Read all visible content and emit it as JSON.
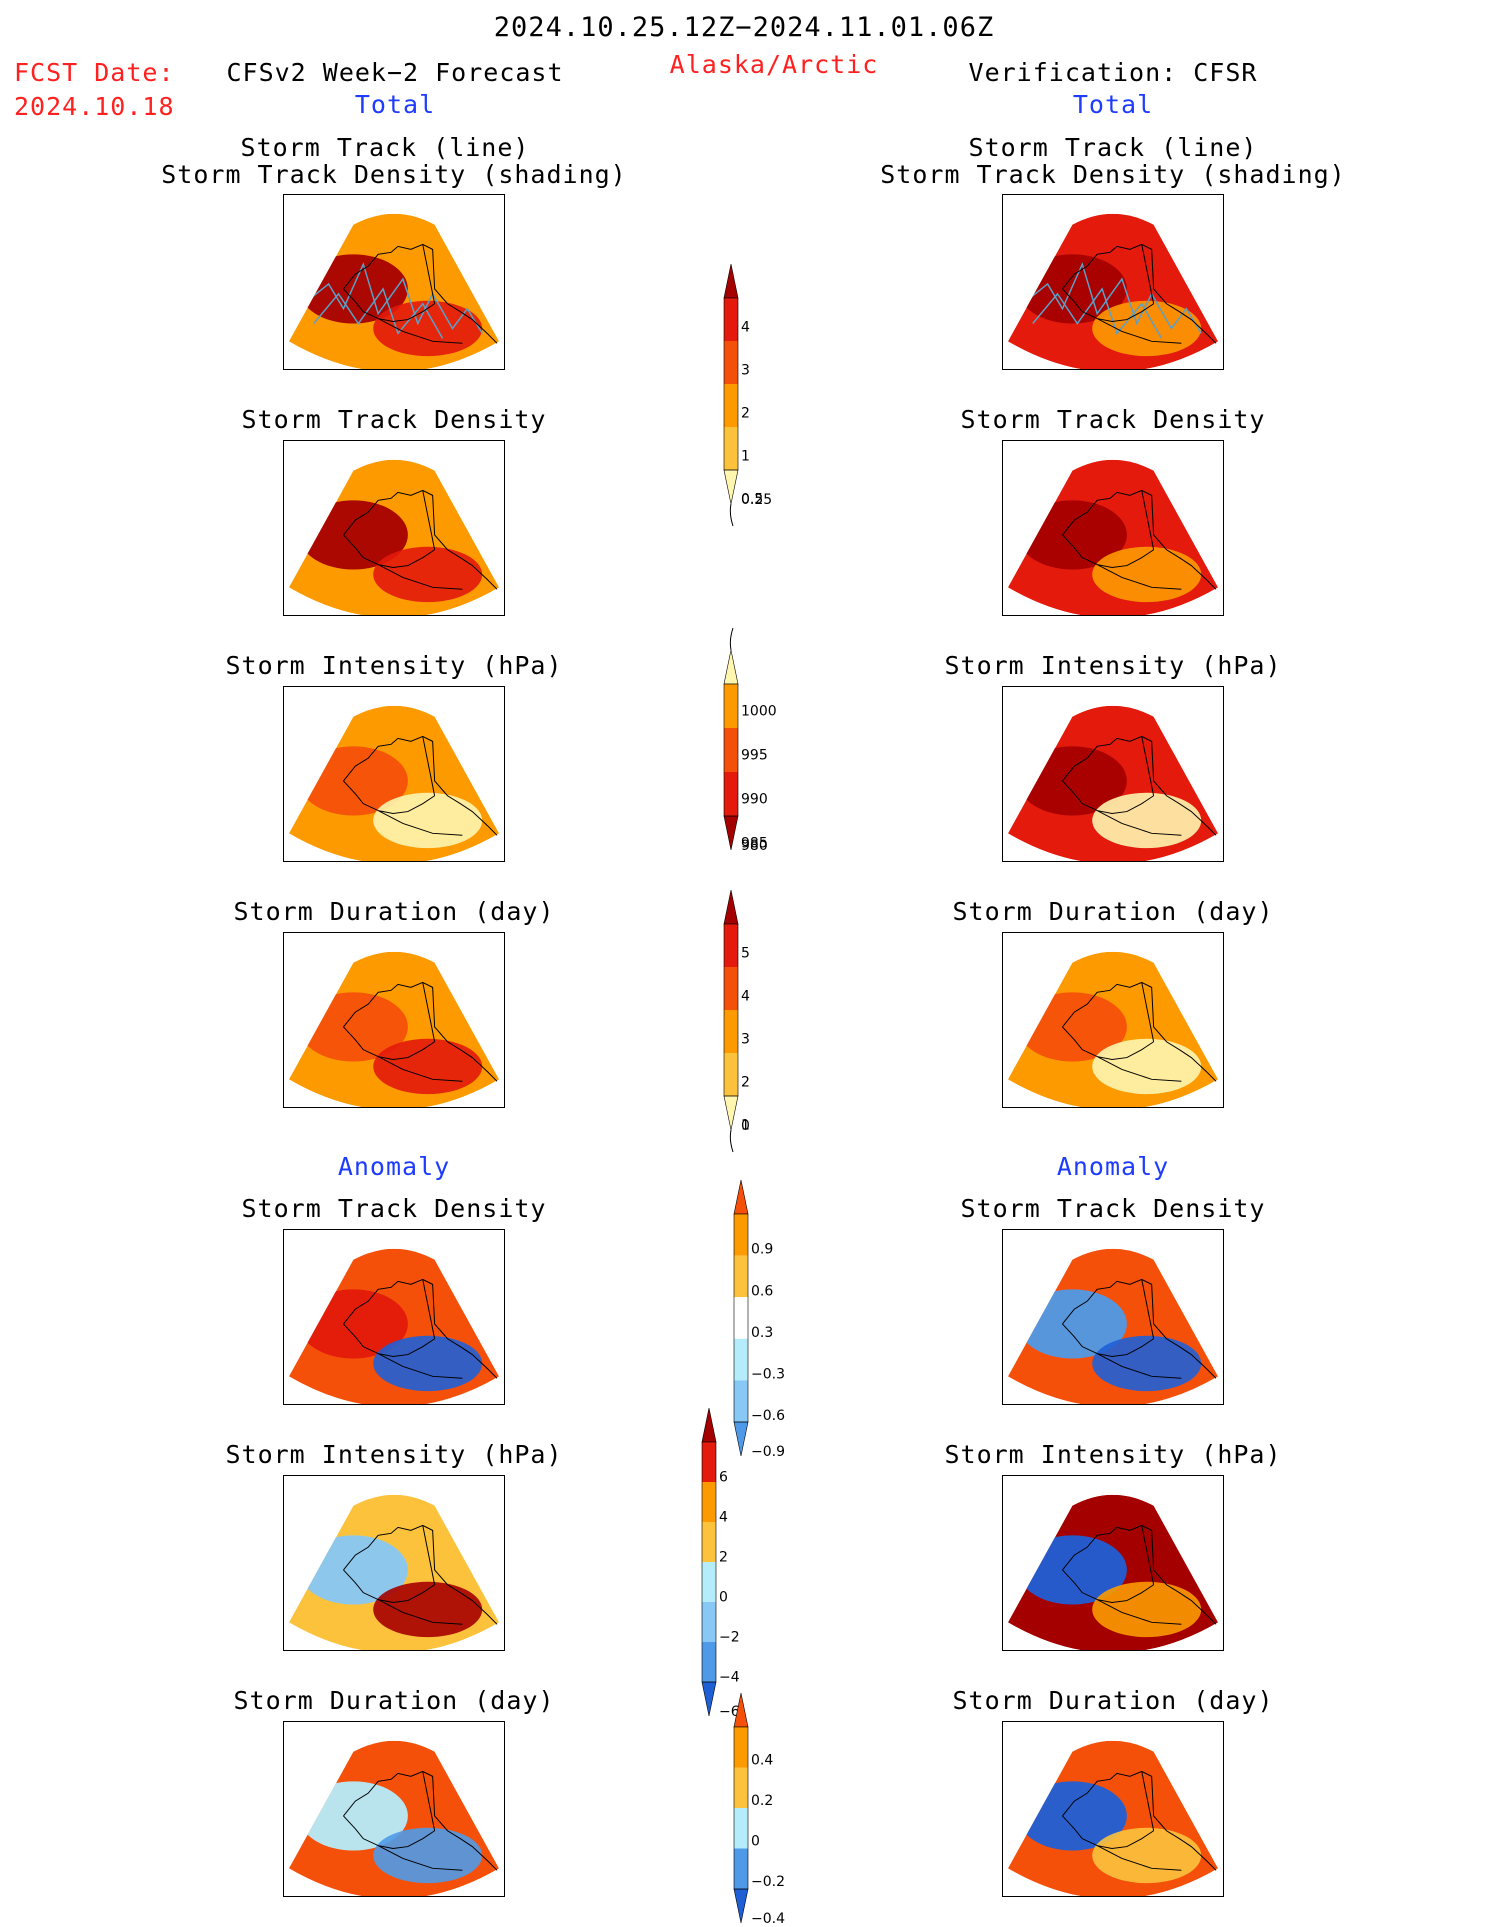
{
  "header": {
    "date_range": "2024.10.25.12Z−2024.11.01.06Z",
    "fcst_label": "FCST Date:",
    "fcst_date": "2024.10.18",
    "forecast_title": "CFSv2 Week−2 Forecast",
    "region": "Alaska/Arctic",
    "verification_title": "Verification: CFSR"
  },
  "section_labels": {
    "total": "Total",
    "anomaly": "Anomaly"
  },
  "panel_titles": {
    "track_line": "Storm Track (line)",
    "track_shading": "Storm Track Density (shading)",
    "density": "Storm Track Density",
    "intensity": "Storm Intensity (hPa)",
    "duration": "Storm Duration (day)"
  },
  "colors": {
    "dark_red": "#a50000",
    "red": "#e31a0c",
    "red_orange": "#f5500a",
    "orange": "#fc9a00",
    "light_orange": "#fcc23c",
    "pale_yellow": "#fff6b0",
    "light_blue": "#b5ecfb",
    "sky_blue": "#87c8f5",
    "mid_blue": "#4f9ae8",
    "deep_blue": "#1f5fd6",
    "track_line": "#5aa0c8",
    "header_red": "#ff2020",
    "header_blue": "#1e3cff"
  },
  "chart_data": [
    {
      "type": "colorbar",
      "name": "storm_track_density_total",
      "levels": [
        "4",
        "3",
        "2",
        "1",
        "0.5",
        "0.25"
      ],
      "colors": [
        "#a50000",
        "#e31a0c",
        "#f5500a",
        "#fc9a00",
        "#fcc23c",
        "#fff6b0"
      ]
    },
    {
      "type": "colorbar",
      "name": "storm_intensity_total",
      "levels": [
        "1000",
        "995",
        "990",
        "985",
        "980"
      ],
      "colors": [
        "#fff6b0",
        "#fc9a00",
        "#f5500a",
        "#e31a0c",
        "#a50000"
      ]
    },
    {
      "type": "colorbar",
      "name": "storm_duration_total",
      "levels": [
        "5",
        "4",
        "3",
        "2",
        "1",
        "0"
      ],
      "colors": [
        "#a50000",
        "#e31a0c",
        "#f5500a",
        "#fc9a00",
        "#fcc23c",
        "#fff6b0"
      ]
    },
    {
      "type": "colorbar",
      "name": "storm_track_density_anomaly",
      "levels": [
        "0.9",
        "0.6",
        "0.3",
        "−0.3",
        "−0.6",
        "−0.9"
      ],
      "colors": [
        "#f5500a",
        "#fc9a00",
        "#fcc23c",
        "#ffffff",
        "#b5ecfb",
        "#87c8f5",
        "#4f9ae8"
      ]
    },
    {
      "type": "colorbar",
      "name": "storm_intensity_anomaly",
      "levels": [
        "6",
        "4",
        "2",
        "0",
        "−2",
        "−4",
        "−6"
      ],
      "colors": [
        "#a50000",
        "#e31a0c",
        "#fc9a00",
        "#fcc23c",
        "#b5ecfb",
        "#87c8f5",
        "#4f9ae8",
        "#1f5fd6"
      ]
    },
    {
      "type": "colorbar",
      "name": "storm_duration_anomaly",
      "levels": [
        "0.4",
        "0.2",
        "0",
        "−0.2",
        "−0.4"
      ],
      "colors": [
        "#f5500a",
        "#fc9a00",
        "#fcc23c",
        "#b5ecfb",
        "#4f9ae8",
        "#1f5fd6"
      ]
    }
  ],
  "maps": {
    "forecast": [
      {
        "id": "fc-track",
        "fill": [
          "#fc9a00",
          "#a50000",
          "#e31a0c"
        ],
        "tracks": true
      },
      {
        "id": "fc-density",
        "fill": [
          "#fc9a00",
          "#a50000",
          "#e31a0c"
        ]
      },
      {
        "id": "fc-intensity",
        "fill": [
          "#fc9a00",
          "#f5500a",
          "#fff6b0"
        ]
      },
      {
        "id": "fc-duration",
        "fill": [
          "#fc9a00",
          "#f5500a",
          "#e31a0c"
        ]
      },
      {
        "id": "fc-anom-density",
        "fill": [
          "#f5500a",
          "#e31a0c",
          "#1f5fd6"
        ]
      },
      {
        "id": "fc-anom-intensity",
        "fill": [
          "#fcc23c",
          "#87c8f5",
          "#a50000"
        ]
      },
      {
        "id": "fc-anom-duration",
        "fill": [
          "#f5500a",
          "#b5ecfb",
          "#4f9ae8"
        ]
      }
    ],
    "verification": [
      {
        "id": "vf-track",
        "fill": [
          "#e31a0c",
          "#a50000",
          "#fc9a00"
        ],
        "tracks": true
      },
      {
        "id": "vf-density",
        "fill": [
          "#e31a0c",
          "#a50000",
          "#fc9a00"
        ]
      },
      {
        "id": "vf-intensity",
        "fill": [
          "#e31a0c",
          "#a50000",
          "#fff6b0"
        ]
      },
      {
        "id": "vf-duration",
        "fill": [
          "#fc9a00",
          "#f5500a",
          "#fff6b0"
        ]
      },
      {
        "id": "vf-anom-density",
        "fill": [
          "#f5500a",
          "#4f9ae8",
          "#1f5fd6"
        ]
      },
      {
        "id": "vf-anom-intensity",
        "fill": [
          "#a50000",
          "#1f5fd6",
          "#fc9a00"
        ]
      },
      {
        "id": "vf-anom-duration",
        "fill": [
          "#f5500a",
          "#1f5fd6",
          "#fcc23c"
        ]
      }
    ]
  }
}
